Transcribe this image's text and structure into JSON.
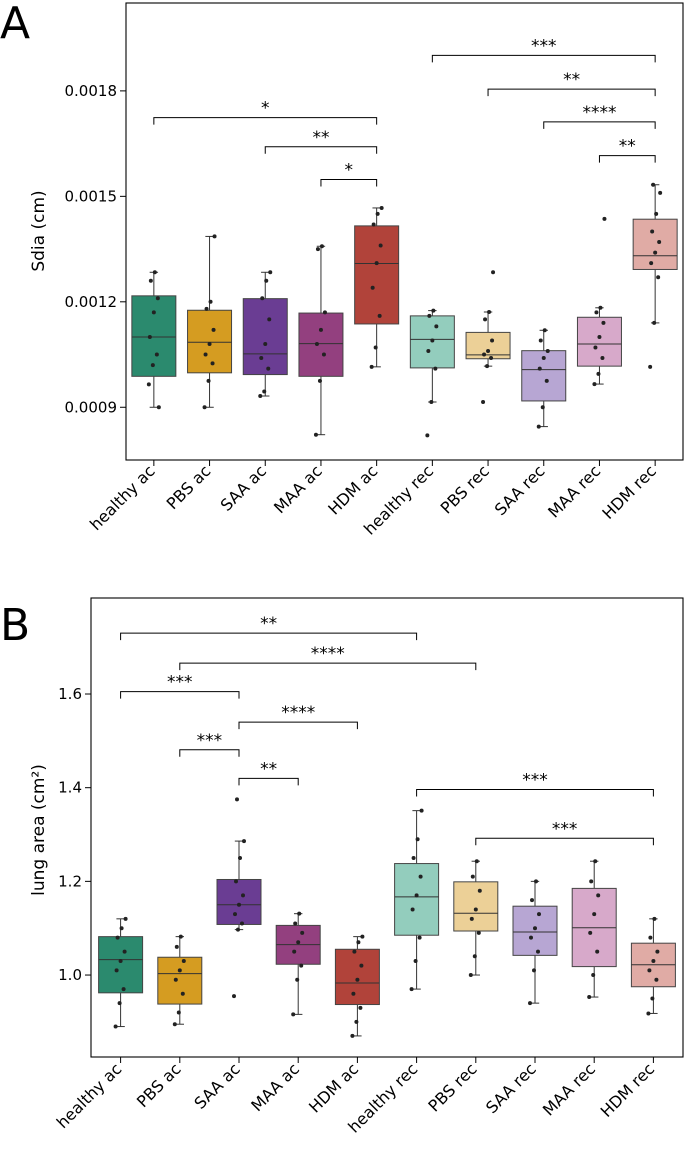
{
  "chart_data": [
    {
      "type": "box",
      "panel_label": "A",
      "ylabel": "Sdia (cm)",
      "xlabel": "",
      "ylim": [
        0.00075,
        0.00205
      ],
      "yticks": [
        0.0009,
        0.0012,
        0.0015,
        0.0018
      ],
      "ytick_labels": [
        "0.0009",
        "0.0012",
        "0.0015",
        "0.0018"
      ],
      "categories": [
        "healthy ac",
        "PBS ac",
        "SAA ac",
        "MAA ac",
        "HDM ac",
        "healthy rec",
        "PBS rec",
        "SAA rec",
        "MAA rec",
        "HDM rec"
      ],
      "colors": [
        "#2b8a6e",
        "#d59c21",
        "#6a3d93",
        "#93407f",
        "#b1433a",
        "#93cdbd",
        "#ecd097",
        "#b7a6d3",
        "#d7a9ca",
        "#e0aba5"
      ],
      "boxes": [
        {
          "q1": 0.000988,
          "median": 0.0011,
          "q3": 0.001217,
          "whisker_low": 0.0009,
          "whisker_high": 0.001284,
          "points": [
            0.000965,
            0.00102,
            0.00105,
            0.0011,
            0.00117,
            0.00121,
            0.00126,
            0.001284,
            0.0009
          ]
        },
        {
          "q1": 0.000998,
          "median": 0.001085,
          "q3": 0.001176,
          "whisker_low": 0.0009,
          "whisker_high": 0.001386,
          "points": [
            0.0009,
            0.000975,
            0.001025,
            0.00105,
            0.00108,
            0.00112,
            0.00118,
            0.0012,
            0.001386
          ]
        },
        {
          "q1": 0.000993,
          "median": 0.001052,
          "q3": 0.001209,
          "whisker_low": 0.000932,
          "whisker_high": 0.001284,
          "points": [
            0.000932,
            0.000945,
            0.00101,
            0.00104,
            0.00108,
            0.00115,
            0.00121,
            0.00126,
            0.001284
          ]
        },
        {
          "q1": 0.000988,
          "median": 0.001081,
          "q3": 0.001168,
          "whisker_low": 0.000822,
          "whisker_high": 0.001358,
          "points": [
            0.000822,
            0.000975,
            0.00105,
            0.00108,
            0.00112,
            0.00117,
            0.00135,
            0.001358
          ]
        },
        {
          "q1": 0.001137,
          "median": 0.001309,
          "q3": 0.001416,
          "whisker_low": 0.001015,
          "whisker_high": 0.001467,
          "points": [
            0.001015,
            0.00107,
            0.00116,
            0.00124,
            0.00131,
            0.00136,
            0.00142,
            0.00145,
            0.001467
          ]
        },
        {
          "q1": 0.001012,
          "median": 0.001093,
          "q3": 0.00116,
          "whisker_low": 0.000915,
          "whisker_high": 0.001175,
          "points": [
            0.00082,
            0.000915,
            0.00101,
            0.00106,
            0.00109,
            0.00113,
            0.00116,
            0.001175
          ]
        },
        {
          "q1": 0.001038,
          "median": 0.001049,
          "q3": 0.001113,
          "whisker_low": 0.001017,
          "whisker_high": 0.001171,
          "points": [
            0.000915,
            0.001017,
            0.00104,
            0.00105,
            0.00106,
            0.00109,
            0.00115,
            0.001171,
            0.001284
          ]
        },
        {
          "q1": 0.000918,
          "median": 0.001007,
          "q3": 0.001061,
          "whisker_low": 0.000845,
          "whisker_high": 0.001119,
          "points": [
            0.000845,
            0.0009,
            0.000975,
            0.00101,
            0.00104,
            0.00106,
            0.00109,
            0.001119
          ]
        },
        {
          "q1": 0.001017,
          "median": 0.00108,
          "q3": 0.001156,
          "whisker_low": 0.000966,
          "whisker_high": 0.001183,
          "points": [
            0.000966,
            0.000995,
            0.00104,
            0.00107,
            0.0011,
            0.00114,
            0.00117,
            0.001183,
            0.001436
          ]
        },
        {
          "q1": 0.001292,
          "median": 0.001331,
          "q3": 0.001435,
          "whisker_low": 0.00114,
          "whisker_high": 0.001533,
          "points": [
            0.001015,
            0.00114,
            0.00127,
            0.00131,
            0.00134,
            0.00137,
            0.0014,
            0.00145,
            0.00151,
            0.001533
          ]
        }
      ],
      "significance": [
        {
          "from": 5,
          "to": 9,
          "y": 0.001901,
          "label": "***"
        },
        {
          "from": 6,
          "to": 9,
          "y": 0.001805,
          "label": "**"
        },
        {
          "from": 0,
          "to": 4,
          "y": 0.001724,
          "label": "*"
        },
        {
          "from": 7,
          "to": 9,
          "y": 0.001712,
          "label": "****"
        },
        {
          "from": 2,
          "to": 4,
          "y": 0.001641,
          "label": "**"
        },
        {
          "from": 8,
          "to": 9,
          "y": 0.001616,
          "label": "**"
        },
        {
          "from": 3,
          "to": 4,
          "y": 0.001548,
          "label": "*"
        }
      ]
    },
    {
      "type": "box",
      "panel_label": "B",
      "ylabel": "lung area (cm²)",
      "xlabel": "",
      "ylim": [
        0.825,
        1.805
      ],
      "yticks": [
        1.0,
        1.2,
        1.4,
        1.6
      ],
      "ytick_labels": [
        "1.0",
        "1.2",
        "1.4",
        "1.6"
      ],
      "categories": [
        "healthy ac",
        "PBS ac",
        "SAA ac",
        "MAA ac",
        "HDM ac",
        "healthy rec",
        "PBS rec",
        "SAA rec",
        "MAA rec",
        "HDM rec"
      ],
      "colors": [
        "#2b8a6e",
        "#d59c21",
        "#6a3d93",
        "#93407f",
        "#b1433a",
        "#93cdbd",
        "#ecd097",
        "#b7a6d3",
        "#d7a9ca",
        "#e0aba5"
      ],
      "boxes": [
        {
          "q1": 0.962,
          "median": 1.033,
          "q3": 1.082,
          "whisker_low": 0.89,
          "whisker_high": 1.12,
          "points": [
            0.89,
            0.94,
            0.97,
            1.01,
            1.03,
            1.05,
            1.08,
            1.1,
            1.12
          ]
        },
        {
          "q1": 0.938,
          "median": 1.003,
          "q3": 1.038,
          "whisker_low": 0.895,
          "whisker_high": 1.082,
          "points": [
            0.895,
            0.92,
            0.96,
            0.99,
            1.01,
            1.03,
            1.06,
            1.082
          ]
        },
        {
          "q1": 1.108,
          "median": 1.15,
          "q3": 1.204,
          "whisker_low": 1.097,
          "whisker_high": 1.286,
          "points": [
            0.955,
            1.097,
            1.11,
            1.13,
            1.15,
            1.17,
            1.2,
            1.25,
            1.286,
            1.375
          ]
        },
        {
          "q1": 1.023,
          "median": 1.065,
          "q3": 1.106,
          "whisker_low": 0.916,
          "whisker_high": 1.131,
          "points": [
            0.916,
            0.99,
            1.02,
            1.05,
            1.07,
            1.09,
            1.11,
            1.131
          ]
        },
        {
          "q1": 0.937,
          "median": 0.983,
          "q3": 1.055,
          "whisker_low": 0.87,
          "whisker_high": 1.082,
          "points": [
            0.87,
            0.9,
            0.93,
            0.96,
            0.99,
            1.02,
            1.05,
            1.07,
            1.082
          ]
        },
        {
          "q1": 1.085,
          "median": 1.167,
          "q3": 1.238,
          "whisker_low": 0.97,
          "whisker_high": 1.351,
          "points": [
            0.97,
            1.03,
            1.08,
            1.14,
            1.17,
            1.21,
            1.25,
            1.29,
            1.351
          ]
        },
        {
          "q1": 1.094,
          "median": 1.132,
          "q3": 1.199,
          "whisker_low": 1.0,
          "whisker_high": 1.243,
          "points": [
            1.0,
            1.04,
            1.09,
            1.12,
            1.14,
            1.18,
            1.21,
            1.243
          ]
        },
        {
          "q1": 1.042,
          "median": 1.092,
          "q3": 1.147,
          "whisker_low": 0.94,
          "whisker_high": 1.2,
          "points": [
            0.94,
            1.01,
            1.05,
            1.08,
            1.1,
            1.13,
            1.16,
            1.2
          ]
        },
        {
          "q1": 1.018,
          "median": 1.101,
          "q3": 1.185,
          "whisker_low": 0.953,
          "whisker_high": 1.243,
          "points": [
            0.953,
            1.0,
            1.05,
            1.09,
            1.13,
            1.17,
            1.2,
            1.243
          ]
        },
        {
          "q1": 0.975,
          "median": 1.022,
          "q3": 1.068,
          "whisker_low": 0.918,
          "whisker_high": 1.12,
          "points": [
            0.918,
            0.95,
            0.99,
            1.01,
            1.03,
            1.05,
            1.08,
            1.12
          ]
        }
      ],
      "significance": [
        {
          "from": 0,
          "to": 5,
          "y": 1.73,
          "label": "**"
        },
        {
          "from": 1,
          "to": 6,
          "y": 1.666,
          "label": "****"
        },
        {
          "from": 0,
          "to": 2,
          "y": 1.605,
          "label": "***"
        },
        {
          "from": 2,
          "to": 4,
          "y": 1.54,
          "label": "****"
        },
        {
          "from": 1,
          "to": 2,
          "y": 1.481,
          "label": "***"
        },
        {
          "from": 2,
          "to": 3,
          "y": 1.42,
          "label": "**"
        },
        {
          "from": 5,
          "to": 9,
          "y": 1.396,
          "label": "***"
        },
        {
          "from": 6,
          "to": 9,
          "y": 1.292,
          "label": "***"
        }
      ]
    }
  ]
}
